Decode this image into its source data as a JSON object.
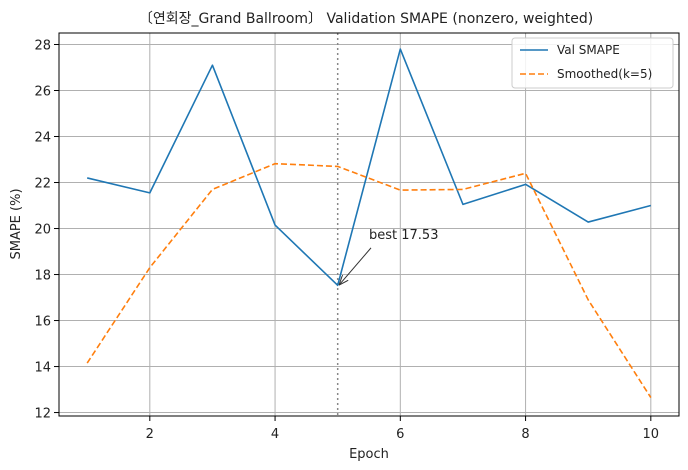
{
  "chart_data": {
    "type": "line",
    "title": "〔연회장_Grand Ballroom〕 Validation SMAPE (nonzero, weighted)",
    "xlabel": "Epoch",
    "ylabel": "SMAPE (%)",
    "x": [
      1,
      2,
      3,
      4,
      5,
      6,
      7,
      8,
      9,
      10
    ],
    "xlim": [
      0.55,
      10.45
    ],
    "ylim": [
      11.85,
      28.5
    ],
    "xticks": [
      2,
      4,
      6,
      8,
      10
    ],
    "yticks": [
      12,
      14,
      16,
      18,
      20,
      22,
      24,
      26,
      28
    ],
    "grid": true,
    "legend_position": "top-right",
    "series": [
      {
        "name": "Val SMAPE",
        "color": "#1f77b4",
        "style": "solid",
        "values": [
          22.2,
          21.55,
          27.1,
          20.15,
          17.53,
          27.8,
          21.05,
          21.92,
          20.28,
          21.0
        ]
      },
      {
        "name": "Smoothed(k=5)",
        "color": "#ff7f0e",
        "style": "dashed",
        "values": [
          14.15,
          18.3,
          21.7,
          22.82,
          22.7,
          21.67,
          21.7,
          22.4,
          16.9,
          12.65
        ]
      }
    ],
    "best_marker": {
      "x": 5,
      "color": "#888888",
      "style": "dotted"
    },
    "annotation": {
      "text": "best 17.53",
      "x": 5,
      "y": 17.53,
      "text_x": 5.5,
      "text_y": 19.55
    }
  }
}
